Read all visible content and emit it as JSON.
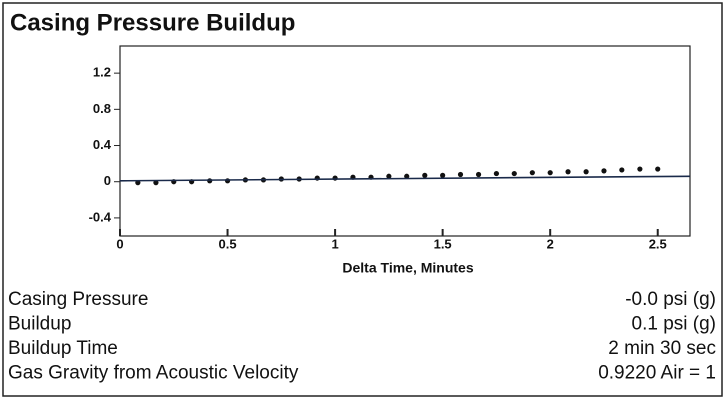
{
  "chart_data": {
    "type": "scatter",
    "title": "Casing Pressure Buildup",
    "x_label": "Delta Time, Minutes",
    "series": [
      {
        "color": "#111111",
        "x": [
          0.083,
          0.167,
          0.25,
          0.333,
          0.417,
          0.5,
          0.583,
          0.667,
          0.75,
          0.833,
          0.917,
          1,
          1.083,
          1.167,
          1.25,
          1.333,
          1.417,
          1.5,
          1.583,
          1.667,
          1.75,
          1.833,
          1.917,
          2,
          2.083,
          2.167,
          2.25,
          2.333,
          2.417,
          2.5
        ],
        "values": [
          -0.01,
          -0.01,
          0,
          0,
          0.01,
          0.01,
          0.02,
          0.02,
          0.03,
          0.03,
          0.04,
          0.04,
          0.05,
          0.05,
          0.06,
          0.06,
          0.07,
          0.07,
          0.08,
          0.08,
          0.09,
          0.09,
          0.1,
          0.1,
          0.11,
          0.11,
          0.12,
          0.13,
          0.14,
          0.14
        ]
      },
      {
        "type": "line",
        "color": "#1a2a4a",
        "x": [
          0,
          2.65
        ],
        "values": [
          0.01,
          0.06
        ]
      }
    ],
    "xlim": [
      0,
      2.65
    ],
    "ylim": [
      -0.6,
      1.5
    ],
    "xticks": [
      0,
      0.5,
      1,
      1.5,
      2,
      2.5
    ],
    "yticks": [
      -0.4,
      0,
      0.4,
      0.8,
      1.2
    ]
  },
  "summary": {
    "rows": [
      [
        "Casing Pressure",
        "-0.0 psi (g)"
      ],
      [
        "Buildup",
        "0.1 psi (g)"
      ],
      [
        "Buildup Time",
        "2 min 30 sec"
      ],
      [
        "Gas Gravity from Acoustic Velocity",
        "0.9220 Air = 1"
      ]
    ]
  }
}
